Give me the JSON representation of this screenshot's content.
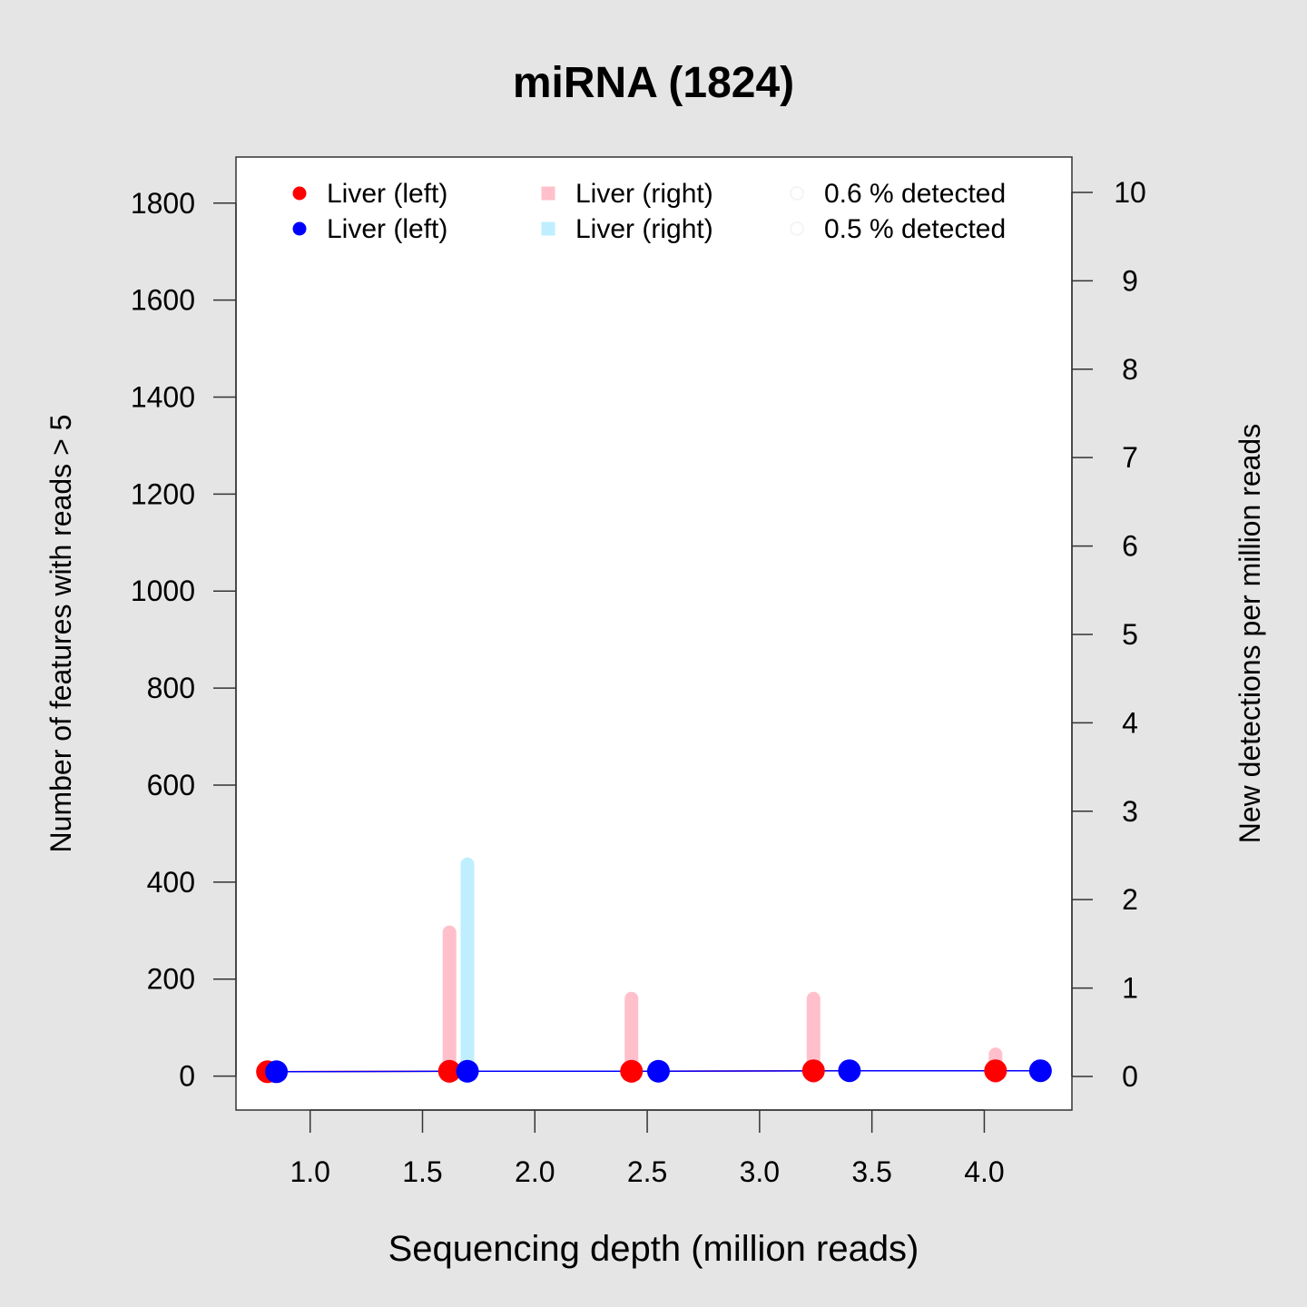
{
  "chart_data": {
    "type": "scatter",
    "title": "miRNA (1824)",
    "xlabel": "Sequencing depth (million reads)",
    "ylabel": "Number of features with reads > 5",
    "y2label": "New detections per million reads",
    "xlim": [
      0.67,
      4.39
    ],
    "ylim": [
      -70,
      1895
    ],
    "y2lim": [
      -0.38,
      10.4
    ],
    "x_ticks": [
      "1.0",
      "1.5",
      "2.0",
      "2.5",
      "3.0",
      "3.5",
      "4.0"
    ],
    "y_ticks": [
      "0",
      "200",
      "400",
      "600",
      "800",
      "1000",
      "1200",
      "1400",
      "1600",
      "1800"
    ],
    "y2_ticks": [
      "0",
      "1",
      "2",
      "3",
      "4",
      "5",
      "6",
      "7",
      "8",
      "9",
      "10"
    ],
    "grid": false,
    "legend_position": "top",
    "legend": [
      {
        "label": "Liver (left)",
        "symbol": "circle",
        "color": "#ff0000"
      },
      {
        "label": "Liver (left)",
        "symbol": "circle",
        "color": "#0000ff"
      },
      {
        "label": "Liver (right)",
        "symbol": "square",
        "color": "#ffc0cb"
      },
      {
        "label": "Liver (right)",
        "symbol": "square",
        "color": "#bfefff"
      },
      {
        "label": "0.6 % detected",
        "symbol": "open-circle",
        "color": "#f2f2f2"
      },
      {
        "label": "0.5 % detected",
        "symbol": "open-circle",
        "color": "#f2f2f2"
      }
    ],
    "series": [
      {
        "axis": "left",
        "kind": "points+line",
        "color": "#ff0000",
        "x": [
          0.81,
          1.62,
          2.43,
          3.24,
          4.05
        ],
        "y": [
          9,
          10,
          10,
          11,
          11
        ]
      },
      {
        "axis": "left",
        "kind": "points+line",
        "color": "#0000ff",
        "x": [
          0.85,
          1.7,
          2.55,
          3.4,
          4.25
        ],
        "y": [
          9,
          10,
          10,
          11,
          11
        ]
      },
      {
        "axis": "right",
        "kind": "bars",
        "color": "#ffc0cb",
        "x": [
          1.62,
          2.43,
          3.24,
          4.05
        ],
        "y": [
          1.63,
          0.88,
          0.88,
          0.25
        ]
      },
      {
        "axis": "right",
        "kind": "bars",
        "color": "#bfefff",
        "x": [
          1.7
        ],
        "y": [
          2.4
        ]
      }
    ]
  }
}
